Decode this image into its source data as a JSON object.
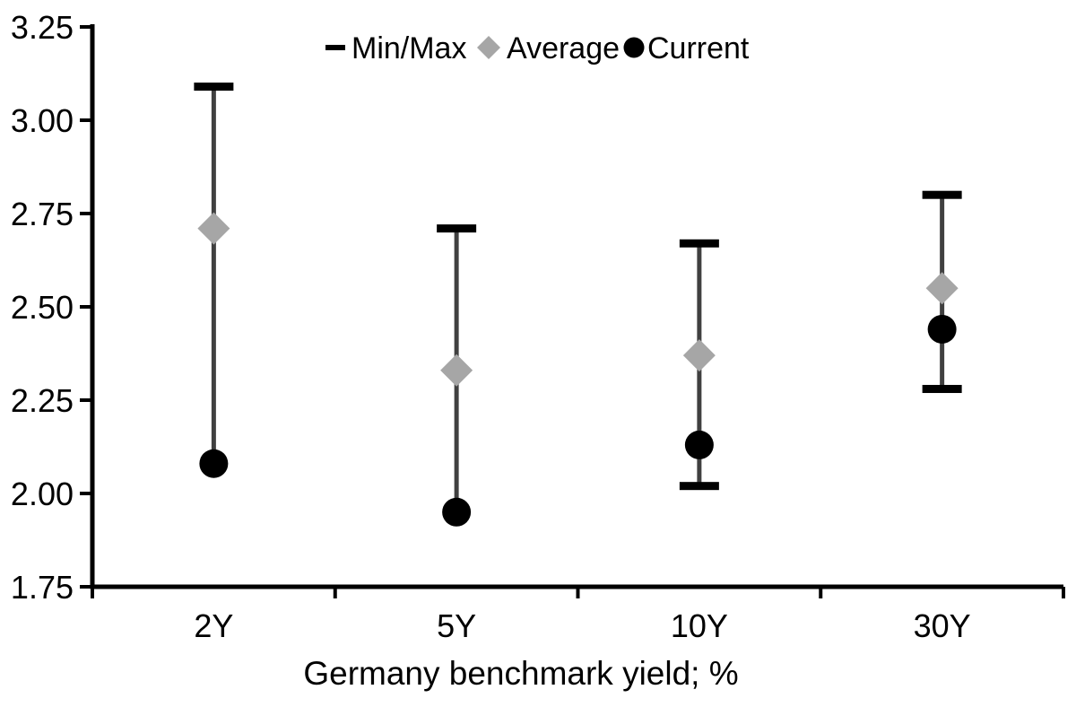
{
  "colors": {
    "axis": "#000000",
    "range_line": "#404040",
    "minmax_marker": "#000000",
    "average_marker": "#a6a6a6",
    "current_marker": "#000000",
    "text": "#000000",
    "background": "#ffffff"
  },
  "legend": {
    "items": [
      {
        "label": "Min/Max",
        "marker": "dash-icon",
        "color": "#000000"
      },
      {
        "label": "Average",
        "marker": "diamond-icon",
        "color": "#a6a6a6"
      },
      {
        "label": "Current",
        "marker": "circle-icon",
        "color": "#000000"
      }
    ]
  },
  "chart_data": {
    "type": "scatter",
    "subtype": "min-max-range-with-markers",
    "title": "",
    "xlabel": "Germany benchmark yield; %",
    "ylabel": "",
    "categories": [
      "2Y",
      "5Y",
      "10Y",
      "30Y"
    ],
    "series": [
      {
        "name": "Min/Max",
        "marker": "dash",
        "color": "#000000",
        "min": [
          2.08,
          1.95,
          2.02,
          2.28
        ],
        "max": [
          3.09,
          2.71,
          2.67,
          2.8
        ]
      },
      {
        "name": "Average",
        "marker": "diamond",
        "color": "#a6a6a6",
        "values": [
          2.71,
          2.33,
          2.37,
          2.55
        ]
      },
      {
        "name": "Current",
        "marker": "circle",
        "color": "#000000",
        "values": [
          2.08,
          1.95,
          2.13,
          2.44
        ]
      }
    ],
    "ylim": [
      1.75,
      3.25
    ],
    "ytick_step": 0.25,
    "ytick_labels": [
      "1.75",
      "2.00",
      "2.25",
      "2.50",
      "2.75",
      "3.00",
      "3.25"
    ],
    "grid": false,
    "legend_position": "top-center"
  }
}
